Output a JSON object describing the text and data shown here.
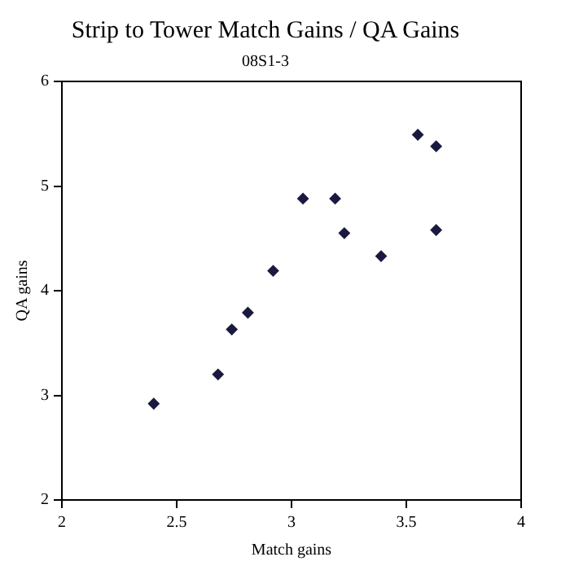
{
  "chart_data": {
    "type": "scatter",
    "title": "Strip to Tower Match Gains / QA Gains",
    "subtitle": "08S1-3",
    "xlabel": "Match gains",
    "ylabel": "QA gains",
    "x": [
      2.4,
      2.68,
      2.74,
      2.81,
      2.92,
      3.05,
      3.19,
      3.23,
      3.39,
      3.55,
      3.63,
      3.63
    ],
    "series": [
      {
        "color": "#1a1a40",
        "values": [
          2.92,
          3.2,
          3.63,
          3.79,
          4.19,
          4.88,
          4.88,
          4.55,
          4.33,
          5.49,
          5.38,
          4.58
        ]
      }
    ],
    "xlim": [
      2,
      4
    ],
    "xticks": [
      2,
      {
        "value": 2.5,
        "label": "2.5"
      },
      3,
      {
        "value": 3.5,
        "label": "3.5"
      },
      4
    ],
    "ylim": [
      2,
      6
    ],
    "yticks": [
      2,
      3,
      4,
      5,
      6
    ],
    "grid": false,
    "legend": false,
    "marker": "diamond"
  }
}
